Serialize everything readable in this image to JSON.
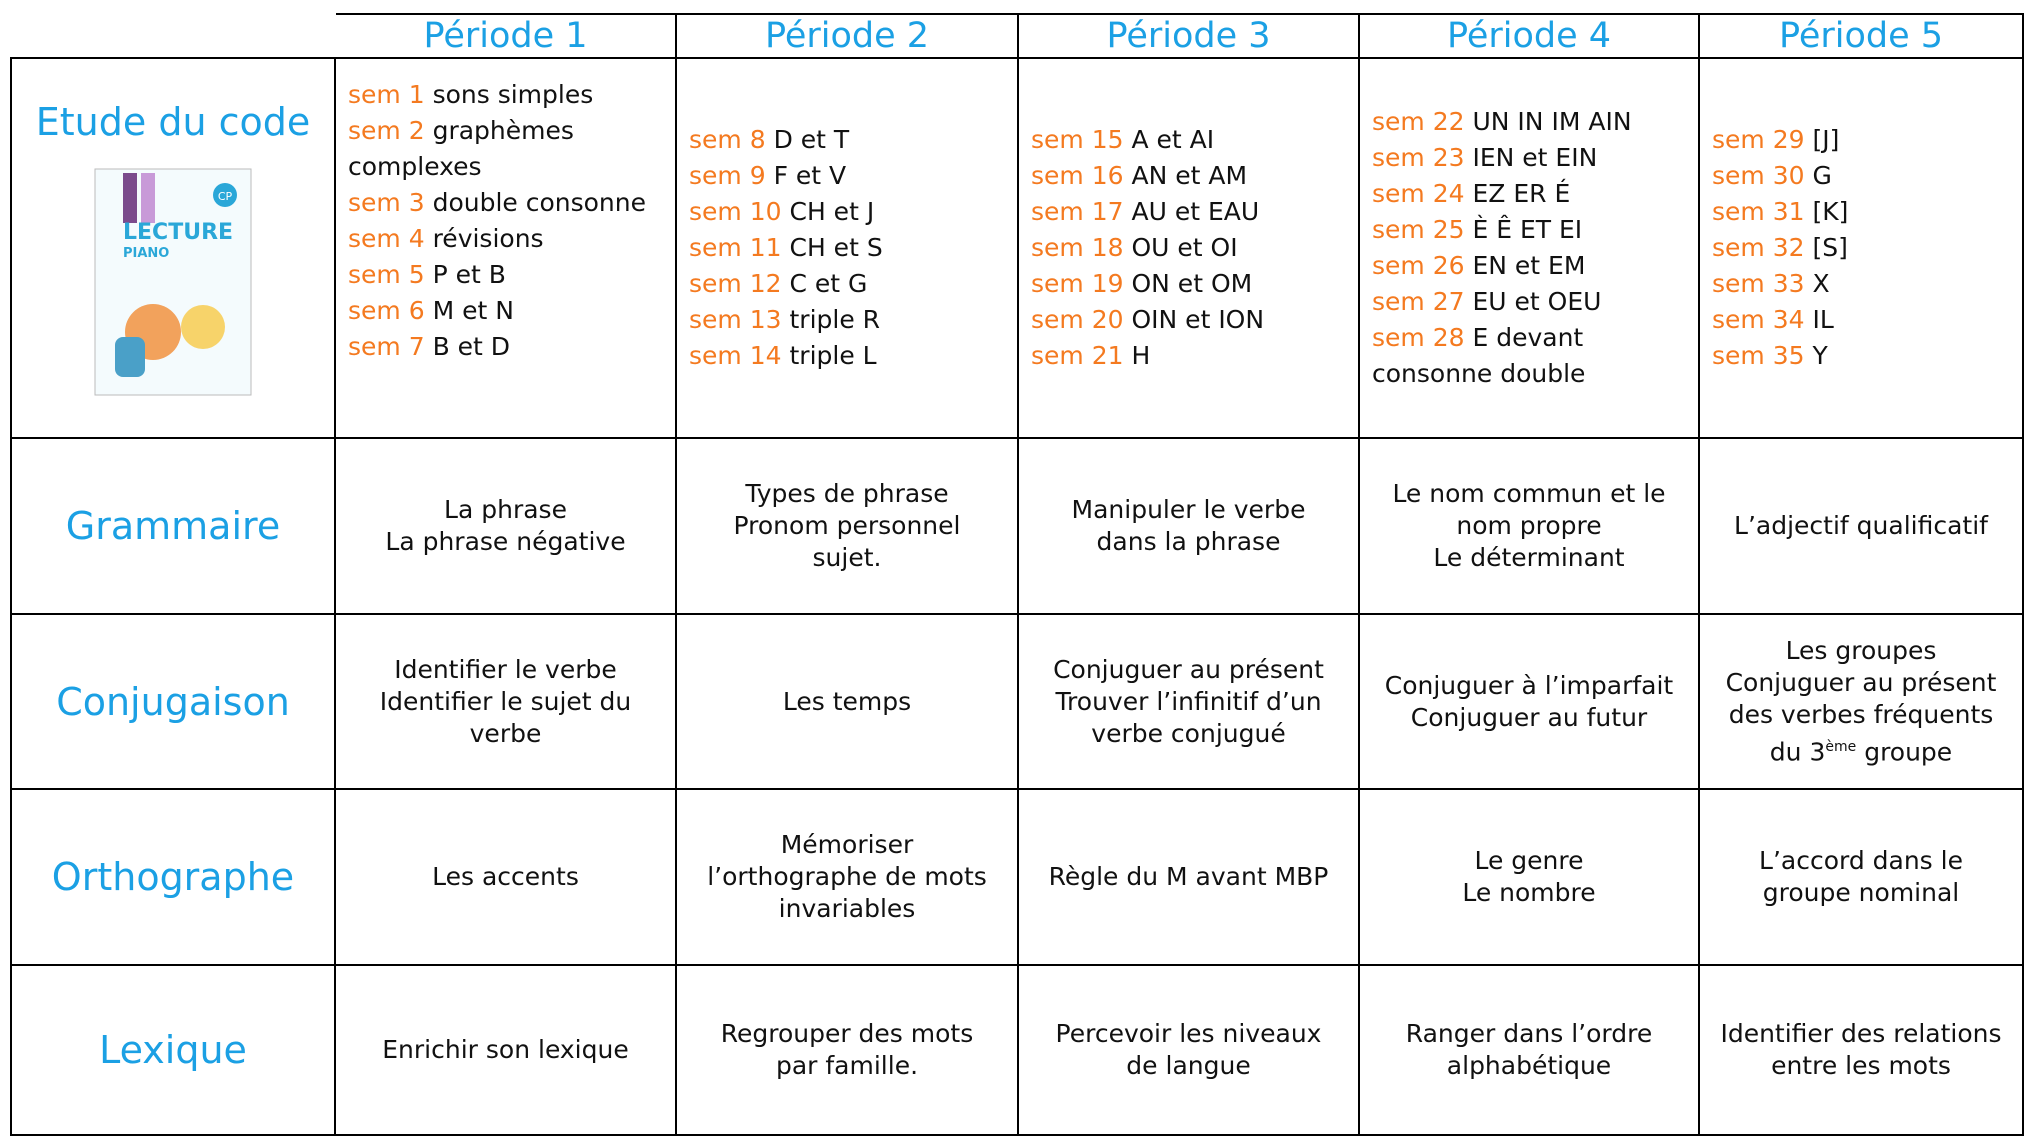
{
  "periods": [
    "Période 1",
    "Période 2",
    "Période 3",
    "Période 4",
    "Période 5"
  ],
  "code": {
    "label": "Etude du code",
    "book": {
      "badge": "CP",
      "title": "LECTURE",
      "subtitle": "PIANO"
    },
    "weeks": [
      [
        {
          "sem": "sem 1",
          "text": "sons simples"
        },
        {
          "sem": "sem 2",
          "text": "graphèmes complexes"
        },
        {
          "sem": "sem 3",
          "text": "double consonne"
        },
        {
          "sem": "sem 4",
          "text": "révisions"
        },
        {
          "sem": "sem 5",
          "text": "P et B"
        },
        {
          "sem": "sem 6",
          "text": "M et N"
        },
        {
          "sem": "sem 7",
          "text": "B et D"
        }
      ],
      [
        {
          "sem": "sem 8",
          "text": "D et T"
        },
        {
          "sem": "sem 9",
          "text": "F et V"
        },
        {
          "sem": "sem 10",
          "text": "CH et J"
        },
        {
          "sem": "sem 11",
          "text": "CH et S"
        },
        {
          "sem": "sem 12",
          "text": "C et G"
        },
        {
          "sem": "sem 13",
          "text": "triple R"
        },
        {
          "sem": "sem 14",
          "text": "triple L"
        }
      ],
      [
        {
          "sem": "sem 15",
          "text": "A et AI"
        },
        {
          "sem": "sem 16",
          "text": "AN et AM"
        },
        {
          "sem": "sem 17",
          "text": "AU et EAU"
        },
        {
          "sem": "sem 18",
          "text": "OU et OI"
        },
        {
          "sem": "sem 19",
          "text": "ON et OM"
        },
        {
          "sem": "sem 20",
          "text": "OIN et ION"
        },
        {
          "sem": "sem 21",
          "text": "H"
        }
      ],
      [
        {
          "sem": "sem 22",
          "text": "UN IN IM AIN"
        },
        {
          "sem": "sem 23",
          "text": "IEN et EIN"
        },
        {
          "sem": "sem 24",
          "text": "EZ ER É"
        },
        {
          "sem": "sem 25",
          "text": "È Ê ET EI"
        },
        {
          "sem": "sem 26",
          "text": "EN et EM"
        },
        {
          "sem": "sem 27",
          "text": "EU et OEU"
        },
        {
          "sem": "sem 28",
          "text": "E devant consonne double"
        }
      ],
      [
        {
          "sem": "sem 29",
          "text": "[J]"
        },
        {
          "sem": "sem 30",
          "text": "G"
        },
        {
          "sem": "sem 31",
          "text": "[K]"
        },
        {
          "sem": "sem 32",
          "text": "[S]"
        },
        {
          "sem": "sem 33",
          "text": "X"
        },
        {
          "sem": "sem 34",
          "text": "IL"
        },
        {
          "sem": "sem 35",
          "text": "Y"
        }
      ]
    ]
  },
  "rows": [
    {
      "label": "Grammaire",
      "cells": [
        [
          "La phrase",
          "La phrase négative"
        ],
        [
          "Types de phrase",
          "Pronom personnel",
          "sujet."
        ],
        [
          "Manipuler le verbe",
          "dans la phrase"
        ],
        [
          "Le nom commun et le",
          "nom propre",
          "Le déterminant"
        ],
        [
          "L’adjectif qualificatif"
        ]
      ]
    },
    {
      "label": "Conjugaison",
      "cells": [
        [
          "Identifier le verbe",
          "Identifier le sujet du",
          "verbe"
        ],
        [
          "Les temps"
        ],
        [
          "Conjuguer au présent",
          "Trouver l’infinitif d’un",
          "verbe conjugué"
        ],
        [
          "Conjuguer à l’imparfait",
          "Conjuguer au futur"
        ],
        [
          "Les groupes",
          "Conjuguer au présent",
          "des verbes fréquents",
          {
            "before": "du 3",
            "sup": "ème",
            "after": " groupe"
          }
        ]
      ]
    },
    {
      "label": "Orthographe",
      "cells": [
        [
          "Les accents"
        ],
        [
          "Mémoriser",
          "l’orthographe de mots",
          "invariables"
        ],
        [
          "Règle du M avant MBP"
        ],
        [
          "Le genre",
          "Le nombre"
        ],
        [
          "L’accord dans le",
          "groupe nominal"
        ]
      ]
    },
    {
      "label": "Lexique",
      "cells": [
        [
          "Enrichir son lexique"
        ],
        [
          "Regrouper des mots",
          "par famille."
        ],
        [
          "Percevoir les niveaux",
          "de langue"
        ],
        [
          "Ranger dans l’ordre",
          "alphabétique"
        ],
        [
          "Identifier des relations",
          "entre les mots"
        ]
      ]
    }
  ]
}
